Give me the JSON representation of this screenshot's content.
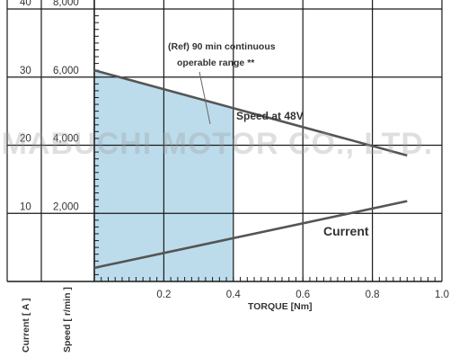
{
  "chart_data": {
    "type": "line",
    "x": [
      0,
      0.9
    ],
    "xlabel": "TORQUE [Nm]",
    "xlim": [
      0,
      1.0
    ],
    "x_ticks": [
      "0.2",
      "0.4",
      "0.6",
      "0.8",
      "1.0"
    ],
    "y_axes": [
      {
        "label": "Current [ A ]",
        "lim": [
          0,
          40
        ],
        "ticks": [
          "10",
          "20",
          "30",
          "40"
        ]
      },
      {
        "label": "Speed [ r/min ]",
        "lim": [
          0,
          8000
        ],
        "ticks": [
          "2,000",
          "4,000",
          "6,000",
          "8,000"
        ]
      }
    ],
    "series": [
      {
        "name": "Speed at 48V",
        "axis": "speed",
        "x": [
          0,
          0.9
        ],
        "values": [
          6200,
          3700
        ]
      },
      {
        "name": "Current",
        "axis": "current",
        "x": [
          0,
          0.9
        ],
        "values": [
          2.0,
          11.8
        ]
      }
    ],
    "shaded_region": {
      "label": "(Ref) 90 min continuous operable range **",
      "x": [
        0,
        0.4
      ],
      "color": "#bcdcec"
    },
    "grid": true,
    "line_color": "#555555"
  },
  "watermark": "MABUCHI MOTOR CO., LTD."
}
